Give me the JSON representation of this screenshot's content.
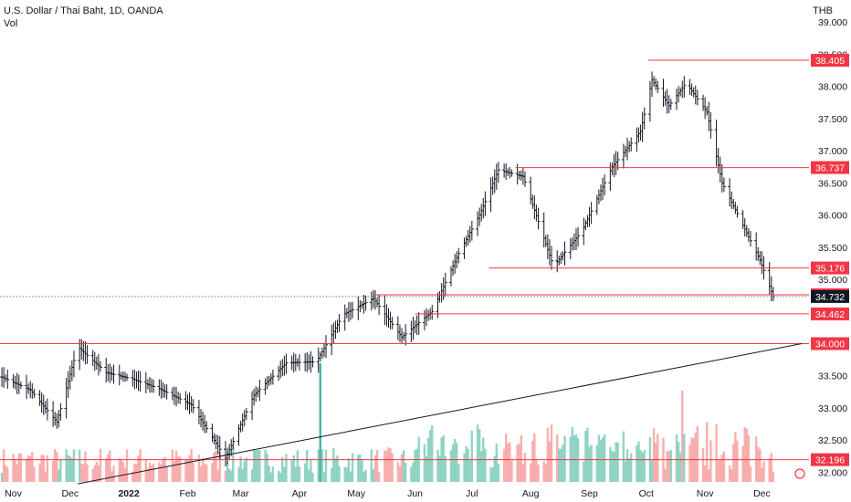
{
  "header": {
    "title": "U.S. Dollar / Thai Baht, 1D, OANDA",
    "volume_label": "Vol",
    "currency": "THB"
  },
  "colors": {
    "level_line": "#f23645",
    "level_tag": "#f23645",
    "last_price_tag": "#131722",
    "candle": "#131722",
    "trendline": "#131722",
    "vol_up": "#7fcdbb",
    "vol_down": "#f7a1a1",
    "vol_spike": "#26a69a"
  },
  "chart_data": {
    "type": "ohlc",
    "title": "U.S. Dollar / Thai Baht, 1D, OANDA",
    "xlabel": "",
    "ylabel": "THB",
    "ylim": [
      31.85,
      39.2
    ],
    "y_ticks": [
      32.0,
      32.5,
      33.0,
      33.5,
      34.0,
      34.5,
      35.0,
      35.5,
      36.0,
      36.5,
      37.0,
      37.5,
      38.0,
      38.5,
      39.0
    ],
    "x_tick_labels": [
      "Nov",
      "Dec",
      "2022",
      "Feb",
      "Mar",
      "Apr",
      "May",
      "Jun",
      "Jul",
      "Aug",
      "Sep",
      "Oct",
      "Nov",
      "Dec"
    ],
    "price_path": [
      [
        "2021-10-26",
        33.48
      ],
      [
        "2021-11-10",
        33.28
      ],
      [
        "2021-11-24",
        32.78
      ],
      [
        "2021-12-05",
        33.95
      ],
      [
        "2021-12-20",
        33.55
      ],
      [
        "2022-01-03",
        33.45
      ],
      [
        "2022-01-17",
        33.3
      ],
      [
        "2022-02-03",
        33.05
      ],
      [
        "2022-02-21",
        32.22
      ],
      [
        "2022-03-08",
        33.2
      ],
      [
        "2022-03-25",
        33.7
      ],
      [
        "2022-04-10",
        33.72
      ],
      [
        "2022-04-24",
        34.45
      ],
      [
        "2022-05-10",
        34.7
      ],
      [
        "2022-05-25",
        34.1
      ],
      [
        "2022-06-10",
        34.5
      ],
      [
        "2022-06-24",
        35.4
      ],
      [
        "2022-07-05",
        36.0
      ],
      [
        "2022-07-15",
        36.7
      ],
      [
        "2022-07-28",
        36.6
      ],
      [
        "2022-08-13",
        35.2
      ],
      [
        "2022-08-28",
        35.75
      ],
      [
        "2022-09-13",
        36.75
      ],
      [
        "2022-09-28",
        37.3
      ],
      [
        "2022-10-04",
        38.1
      ],
      [
        "2022-10-13",
        37.7
      ],
      [
        "2022-10-22",
        38.05
      ],
      [
        "2022-11-02",
        37.6
      ],
      [
        "2022-11-10",
        36.5
      ],
      [
        "2022-11-20",
        35.9
      ],
      [
        "2022-11-30",
        35.3
      ],
      [
        "2022-12-07",
        34.73
      ]
    ],
    "horizontal_levels": [
      38.405,
      36.737,
      35.176,
      34.759,
      34.462,
      34.0,
      32.196
    ],
    "last_price": 34.732,
    "trendline": {
      "from": [
        "2021-12-05",
        31.82
      ],
      "to": [
        "2022-12-22",
        34.0
      ]
    },
    "volume_spikes": [
      [
        "2022-04-12",
        "high"
      ],
      [
        "2022-10-20",
        "high"
      ]
    ],
    "grid": false
  }
}
